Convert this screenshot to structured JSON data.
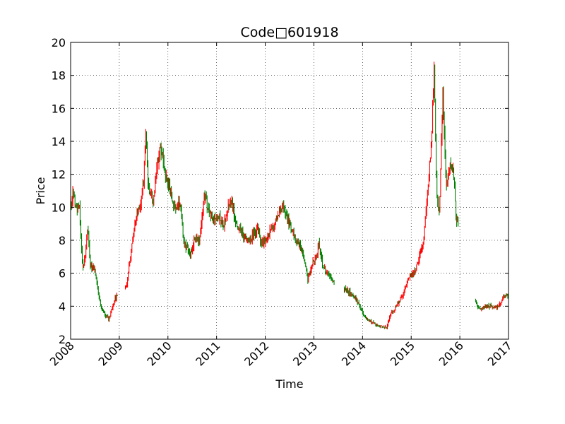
{
  "chart_data": {
    "type": "candlestick",
    "title": "Code□601918",
    "xlabel": "Time",
    "ylabel": "Price",
    "ylim": [
      2,
      20
    ],
    "yticks": [
      2,
      4,
      6,
      8,
      10,
      12,
      14,
      16,
      18,
      20
    ],
    "xlim": [
      2008,
      2017
    ],
    "xticks": [
      "2008",
      "2009",
      "2010",
      "2011",
      "2012",
      "2013",
      "2014",
      "2015",
      "2016",
      "2017"
    ],
    "grid": true,
    "up_color": "#ff0000",
    "down_color": "#008000",
    "gaps": [
      [
        2008.97,
        2009.12
      ],
      [
        2013.42,
        2013.62
      ],
      [
        2015.97,
        2016.32
      ]
    ],
    "series": [
      {
        "name": "price",
        "points": [
          [
            2008.0,
            10.2
          ],
          [
            2008.05,
            11.0
          ],
          [
            2008.12,
            9.8
          ],
          [
            2008.18,
            10.3
          ],
          [
            2008.22,
            7.5
          ],
          [
            2008.25,
            6.3
          ],
          [
            2008.3,
            7.0
          ],
          [
            2008.35,
            8.8
          ],
          [
            2008.4,
            6.5
          ],
          [
            2008.5,
            6.2
          ],
          [
            2008.55,
            5.2
          ],
          [
            2008.62,
            4.0
          ],
          [
            2008.7,
            3.5
          ],
          [
            2008.78,
            3.2
          ],
          [
            2008.85,
            3.8
          ],
          [
            2008.92,
            4.5
          ],
          [
            2009.15,
            5.2
          ],
          [
            2009.25,
            7.5
          ],
          [
            2009.35,
            9.5
          ],
          [
            2009.45,
            10.5
          ],
          [
            2009.5,
            11.5
          ],
          [
            2009.55,
            14.5
          ],
          [
            2009.6,
            11.0
          ],
          [
            2009.7,
            10.5
          ],
          [
            2009.78,
            12.5
          ],
          [
            2009.85,
            13.8
          ],
          [
            2009.95,
            12.0
          ],
          [
            2010.05,
            11.0
          ],
          [
            2010.12,
            10.0
          ],
          [
            2010.25,
            10.2
          ],
          [
            2010.32,
            8.0
          ],
          [
            2010.4,
            7.5
          ],
          [
            2010.45,
            6.9
          ],
          [
            2010.55,
            8.2
          ],
          [
            2010.65,
            8.0
          ],
          [
            2010.75,
            10.8
          ],
          [
            2010.82,
            10.0
          ],
          [
            2010.92,
            9.2
          ],
          [
            2011.05,
            9.5
          ],
          [
            2011.15,
            9.0
          ],
          [
            2011.3,
            10.5
          ],
          [
            2011.4,
            9.0
          ],
          [
            2011.5,
            8.6
          ],
          [
            2011.6,
            8.0
          ],
          [
            2011.72,
            8.2
          ],
          [
            2011.85,
            8.6
          ],
          [
            2011.92,
            7.8
          ],
          [
            2012.05,
            8.2
          ],
          [
            2012.15,
            8.8
          ],
          [
            2012.25,
            9.5
          ],
          [
            2012.35,
            10.2
          ],
          [
            2012.42,
            9.8
          ],
          [
            2012.5,
            9.0
          ],
          [
            2012.62,
            8.2
          ],
          [
            2012.72,
            7.6
          ],
          [
            2012.8,
            6.8
          ],
          [
            2012.88,
            5.6
          ],
          [
            2012.95,
            6.5
          ],
          [
            2013.05,
            7.0
          ],
          [
            2013.1,
            7.8
          ],
          [
            2013.18,
            6.5
          ],
          [
            2013.3,
            5.8
          ],
          [
            2013.4,
            5.4
          ],
          [
            2013.65,
            5.0
          ],
          [
            2013.75,
            4.8
          ],
          [
            2013.85,
            4.5
          ],
          [
            2013.98,
            3.8
          ],
          [
            2014.05,
            3.3
          ],
          [
            2014.2,
            3.0
          ],
          [
            2014.35,
            2.8
          ],
          [
            2014.5,
            2.7
          ],
          [
            2014.55,
            3.4
          ],
          [
            2014.65,
            3.8
          ],
          [
            2014.8,
            4.5
          ],
          [
            2014.95,
            5.8
          ],
          [
            2015.05,
            6.0
          ],
          [
            2015.15,
            6.8
          ],
          [
            2015.25,
            8.0
          ],
          [
            2015.35,
            11.5
          ],
          [
            2015.42,
            14.0
          ],
          [
            2015.47,
            18.5
          ],
          [
            2015.52,
            11.0
          ],
          [
            2015.58,
            9.5
          ],
          [
            2015.65,
            17.0
          ],
          [
            2015.72,
            11.0
          ],
          [
            2015.8,
            12.5
          ],
          [
            2015.87,
            12.0
          ],
          [
            2015.92,
            9.5
          ],
          [
            2016.35,
            4.0
          ],
          [
            2016.45,
            3.8
          ],
          [
            2016.55,
            4.0
          ],
          [
            2016.65,
            4.0
          ],
          [
            2016.75,
            3.9
          ],
          [
            2016.85,
            4.3
          ],
          [
            2016.92,
            4.7
          ],
          [
            2017.0,
            4.6
          ]
        ]
      }
    ]
  }
}
